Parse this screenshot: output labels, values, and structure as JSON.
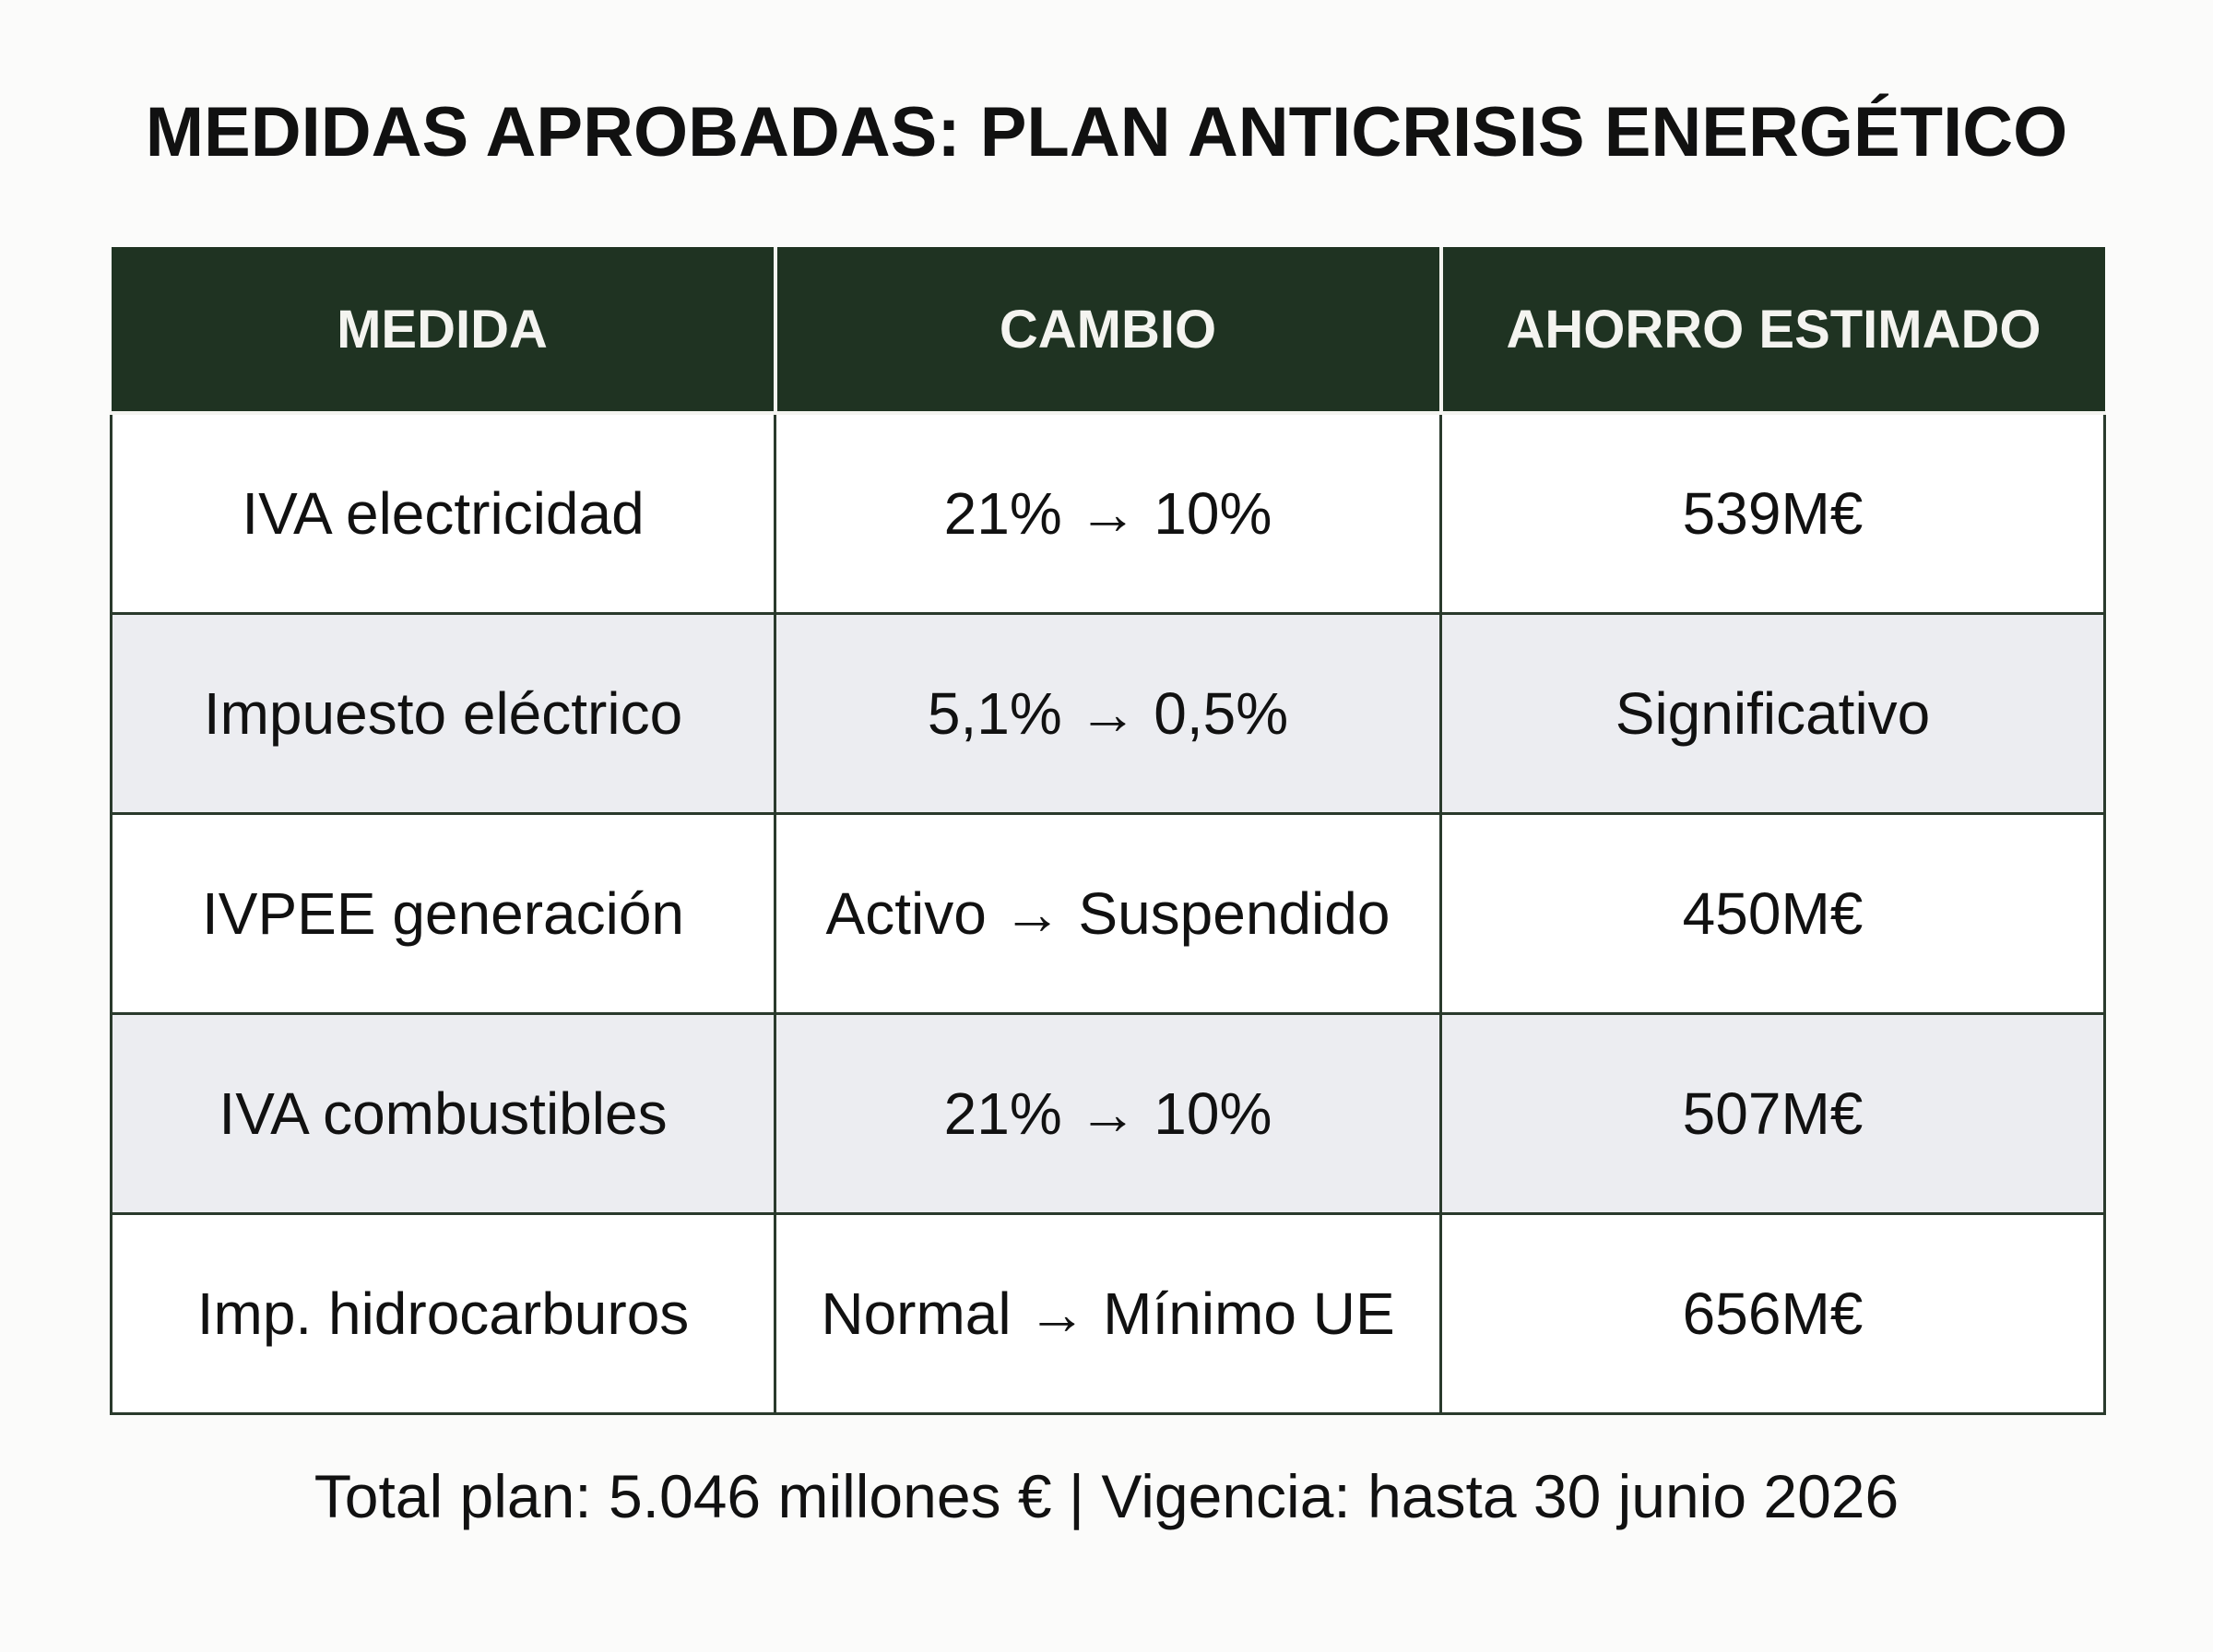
{
  "title": "MEDIDAS APROBADAS: PLAN ANTICRISIS ENERGÉTICO",
  "table": {
    "headers": [
      "MEDIDA",
      "CAMBIO",
      "AHORRO ESTIMADO"
    ],
    "rows": [
      [
        "IVA electricidad",
        "21% → 10%",
        "539M€"
      ],
      [
        "Impuesto eléctrico",
        "5,1% → 0,5%",
        "Significativo"
      ],
      [
        "IVPEE generación",
        "Activo → Suspendido",
        "450M€"
      ],
      [
        "IVA combustibles",
        "21% → 10%",
        "507M€"
      ],
      [
        "Imp. hidrocarburos",
        "Normal → Mínimo UE",
        "656M€"
      ]
    ]
  },
  "footer": "Total plan: 5.046 millones € | Vigencia: hasta 30 junio 2026",
  "colors": {
    "header_bg": "#1f3322",
    "alt_row_bg": "#ecedf1"
  }
}
